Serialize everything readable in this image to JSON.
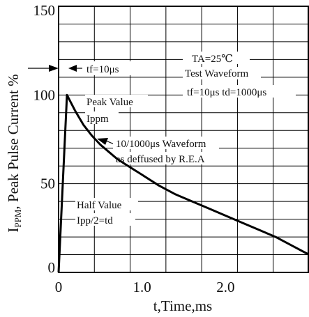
{
  "chart_data": {
    "type": "line",
    "title": "",
    "xlabel": "t,Time,ms",
    "ylabel_main": "I",
    "ylabel_sub": "PPM",
    "ylabel_rest": ", Peak Pulse Current %",
    "xlim": [
      0,
      3.0
    ],
    "ylim": [
      0,
      150
    ],
    "x_ticks": [
      {
        "value": 0,
        "label": "0"
      },
      {
        "value": 1.0,
        "label": "1.0"
      },
      {
        "value": 2.0,
        "label": "2.0"
      }
    ],
    "y_ticks": [
      {
        "value": 0,
        "label": "0"
      },
      {
        "value": 50,
        "label": "50"
      },
      {
        "value": 100,
        "label": "100"
      },
      {
        "value": 150,
        "label": "150"
      }
    ],
    "grid": true,
    "series": [
      {
        "color": "#000000",
        "x": [
          0,
          0.1,
          0.2,
          0.3,
          0.4,
          0.5,
          0.6,
          0.7,
          0.8,
          1.0,
          1.2,
          1.4,
          1.6,
          1.8,
          2.0,
          2.2,
          2.4,
          2.6,
          2.8,
          3.0
        ],
        "y": [
          0,
          100,
          91,
          83,
          77,
          72,
          68,
          64,
          61,
          55,
          49,
          44,
          40,
          36,
          32,
          28,
          24,
          20,
          15,
          10
        ]
      }
    ],
    "annotations": {
      "tf": "tf=10μs",
      "ta": "TA=25℃",
      "test_waveform": "Test Waveform",
      "tf_td": "tf=10μs td=1000μs",
      "peak_value": "Peak Value",
      "ippm": "Ippm",
      "waveform": "10/1000μs Waveform",
      "deffused": "as deffused by R.E.A",
      "half_value": "Half Value",
      "ipp2": "Ipp/2=td"
    }
  }
}
